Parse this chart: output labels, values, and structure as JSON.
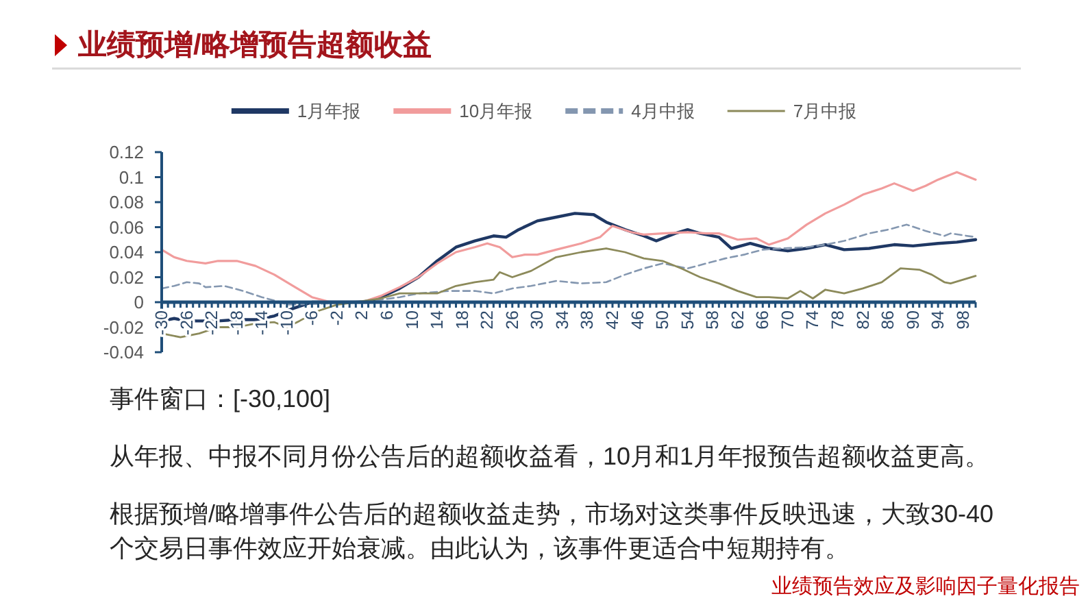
{
  "chart_data": {
    "type": "line",
    "title": "业绩预增/略增预告超额收益",
    "legend": "top",
    "line_style": "solid",
    "xlim": [
      -30,
      100
    ],
    "ylim": [
      -0.04,
      0.12
    ],
    "yticks": [
      -0.04,
      -0.02,
      0,
      0.02,
      0.04,
      0.06,
      0.08,
      0.1,
      0.12
    ],
    "xticks": [
      -30,
      {
        "value": -29,
        "label": null
      },
      {
        "value": -28,
        "label": null
      },
      {
        "value": -27,
        "label": null
      },
      -26,
      {
        "value": -25,
        "label": null
      },
      {
        "value": -24,
        "label": null
      },
      {
        "value": -23,
        "label": null
      },
      -22,
      {
        "value": -21,
        "label": null
      },
      {
        "value": -20,
        "label": null
      },
      {
        "value": -19,
        "label": null
      },
      -18,
      {
        "value": -17,
        "label": null
      },
      {
        "value": -16,
        "label": null
      },
      {
        "value": -15,
        "label": null
      },
      -14,
      {
        "value": -13,
        "label": null
      },
      {
        "value": -12,
        "label": null
      },
      {
        "value": -11,
        "label": null
      },
      -10,
      {
        "value": -9,
        "label": null
      },
      {
        "value": -8,
        "label": null
      },
      {
        "value": -7,
        "label": null
      },
      -6,
      {
        "value": -5,
        "label": null
      },
      {
        "value": -4,
        "label": null
      },
      {
        "value": -3,
        "label": null
      },
      -2,
      {
        "value": -1,
        "label": null
      },
      {
        "value": 0,
        "label": null
      },
      {
        "value": 1,
        "label": null
      },
      2,
      {
        "value": 3,
        "label": null
      },
      {
        "value": 4,
        "label": null
      },
      {
        "value": 5,
        "label": null
      },
      6,
      {
        "value": 7,
        "label": null
      },
      {
        "value": 8,
        "label": null
      },
      {
        "value": 9,
        "label": null
      },
      10,
      {
        "value": 11,
        "label": null
      },
      {
        "value": 12,
        "label": null
      },
      {
        "value": 13,
        "label": null
      },
      14,
      {
        "value": 15,
        "label": null
      },
      {
        "value": 16,
        "label": null
      },
      {
        "value": 17,
        "label": null
      },
      18,
      {
        "value": 19,
        "label": null
      },
      {
        "value": 20,
        "label": null
      },
      {
        "value": 21,
        "label": null
      },
      22,
      {
        "value": 23,
        "label": null
      },
      {
        "value": 24,
        "label": null
      },
      {
        "value": 25,
        "label": null
      },
      26,
      {
        "value": 27,
        "label": null
      },
      {
        "value": 28,
        "label": null
      },
      {
        "value": 29,
        "label": null
      },
      30,
      {
        "value": 31,
        "label": null
      },
      {
        "value": 32,
        "label": null
      },
      {
        "value": 33,
        "label": null
      },
      34,
      {
        "value": 35,
        "label": null
      },
      {
        "value": 36,
        "label": null
      },
      {
        "value": 37,
        "label": null
      },
      38,
      {
        "value": 39,
        "label": null
      },
      {
        "value": 40,
        "label": null
      },
      {
        "value": 41,
        "label": null
      },
      42,
      {
        "value": 43,
        "label": null
      },
      {
        "value": 44,
        "label": null
      },
      {
        "value": 45,
        "label": null
      },
      46,
      {
        "value": 47,
        "label": null
      },
      {
        "value": 48,
        "label": null
      },
      {
        "value": 49,
        "label": null
      },
      50,
      {
        "value": 51,
        "label": null
      },
      {
        "value": 52,
        "label": null
      },
      {
        "value": 53,
        "label": null
      },
      54,
      {
        "value": 55,
        "label": null
      },
      {
        "value": 56,
        "label": null
      },
      {
        "value": 57,
        "label": null
      },
      58,
      {
        "value": 59,
        "label": null
      },
      {
        "value": 60,
        "label": null
      },
      {
        "value": 61,
        "label": null
      },
      62,
      {
        "value": 63,
        "label": null
      },
      {
        "value": 64,
        "label": null
      },
      {
        "value": 65,
        "label": null
      },
      66,
      {
        "value": 67,
        "label": null
      },
      {
        "value": 68,
        "label": null
      },
      {
        "value": 69,
        "label": null
      },
      70,
      {
        "value": 71,
        "label": null
      },
      {
        "value": 72,
        "label": null
      },
      {
        "value": 73,
        "label": null
      },
      74,
      {
        "value": 75,
        "label": null
      },
      {
        "value": 76,
        "label": null
      },
      {
        "value": 77,
        "label": null
      },
      78,
      {
        "value": 79,
        "label": null
      },
      {
        "value": 80,
        "label": null
      },
      {
        "value": 81,
        "label": null
      },
      82,
      {
        "value": 83,
        "label": null
      },
      {
        "value": 84,
        "label": null
      },
      {
        "value": 85,
        "label": null
      },
      86,
      {
        "value": 87,
        "label": null
      },
      {
        "value": 88,
        "label": null
      },
      {
        "value": 89,
        "label": null
      },
      90,
      {
        "value": 91,
        "label": null
      },
      {
        "value": 92,
        "label": null
      },
      {
        "value": 93,
        "label": null
      },
      94,
      {
        "value": 95,
        "label": null
      },
      {
        "value": 96,
        "label": null
      },
      {
        "value": 97,
        "label": null
      },
      98,
      {
        "value": 99,
        "label": null
      },
      {
        "value": 100,
        "label": null
      }
    ],
    "series": [
      {
        "name": "1月年报",
        "color": "#1f3864",
        "x": [
          -30,
          -28,
          -26,
          -21,
          -18,
          -15,
          -12,
          -9,
          -6,
          -3,
          0,
          3,
          5,
          8,
          11,
          14,
          17,
          20,
          23,
          25,
          27,
          30,
          32,
          36,
          39,
          41,
          44,
          47,
          49,
          52,
          54,
          56,
          59,
          61,
          64,
          67,
          70,
          73,
          76,
          79,
          83,
          87,
          90,
          94,
          97,
          100
        ],
        "values": [
          -0.015,
          -0.013,
          -0.015,
          -0.015,
          -0.014,
          -0.014,
          -0.011,
          -0.005,
          0,
          0,
          0,
          0,
          0.004,
          0.011,
          0.02,
          0.033,
          0.044,
          0.049,
          0.053,
          0.052,
          0.058,
          0.065,
          0.067,
          0.071,
          0.07,
          0.064,
          0.058,
          0.053,
          0.049,
          0.055,
          0.058,
          0.055,
          0.052,
          0.043,
          0.047,
          0.043,
          0.041,
          0.043,
          0.046,
          0.042,
          0.043,
          0.046,
          0.045,
          0.047,
          0.048,
          0.05
        ]
      },
      {
        "name": "10月年报",
        "color": "#f19c9c",
        "x": [
          -30,
          -28,
          -26,
          -23,
          -21,
          -18,
          -15,
          -12,
          -9,
          -6,
          -3,
          0,
          2,
          5,
          8,
          11,
          14,
          17,
          20,
          22,
          24,
          26,
          28,
          30,
          33,
          37,
          40,
          42,
          45,
          47,
          50,
          54,
          57,
          59,
          62,
          65,
          67,
          70,
          73,
          76,
          79,
          82,
          85,
          87,
          90,
          92,
          94,
          97,
          100
        ],
        "values": [
          0.042,
          0.036,
          0.033,
          0.031,
          0.033,
          0.033,
          0.029,
          0.022,
          0.013,
          0.004,
          0,
          0,
          0,
          0.005,
          0.012,
          0.02,
          0.031,
          0.04,
          0.044,
          0.047,
          0.044,
          0.036,
          0.038,
          0.038,
          0.042,
          0.047,
          0.052,
          0.061,
          0.056,
          0.054,
          0.055,
          0.056,
          0.055,
          0.055,
          0.05,
          0.051,
          0.046,
          0.051,
          0.062,
          0.071,
          0.078,
          0.086,
          0.091,
          0.095,
          0.089,
          0.093,
          0.098,
          0.104,
          0.098
        ]
      },
      {
        "name": "4月中报",
        "color": "#8497b0",
        "line_style": "dashed",
        "x": [
          -30,
          -28,
          -26,
          -24,
          -23,
          -20,
          -17,
          -14,
          -11,
          -10,
          -3,
          5,
          8,
          11,
          16,
          20,
          23,
          26,
          29,
          33,
          37,
          41,
          44,
          47,
          50,
          54,
          57,
          60,
          63,
          66,
          69,
          73,
          76,
          79,
          83,
          86,
          89,
          92,
          95,
          96,
          100
        ],
        "values": [
          0.011,
          0.013,
          0.016,
          0.015,
          0.012,
          0.013,
          0.009,
          0.004,
          0,
          -0.002,
          -0.001,
          0.002,
          0.004,
          0.007,
          0.009,
          0.009,
          0.007,
          0.011,
          0.013,
          0.017,
          0.015,
          0.016,
          0.022,
          0.027,
          0.031,
          0.027,
          0.031,
          0.035,
          0.038,
          0.042,
          0.043,
          0.044,
          0.046,
          0.049,
          0.055,
          0.058,
          0.062,
          0.057,
          0.053,
          0.055,
          0.052
        ]
      },
      {
        "name": "7月中报",
        "color": "#8c8a5a",
        "x": [
          -30,
          -27,
          -24,
          -21,
          -18,
          -15,
          -12,
          -10,
          -8,
          -5,
          -2,
          1,
          5,
          8,
          11,
          14,
          17,
          20,
          23,
          24,
          26,
          29,
          33,
          37,
          41,
          44,
          47,
          50,
          53,
          56,
          59,
          62,
          65,
          67,
          70,
          72,
          74,
          76,
          79,
          82,
          85,
          88,
          91,
          93,
          95,
          96,
          100
        ],
        "values": [
          -0.025,
          -0.028,
          -0.025,
          -0.02,
          -0.02,
          -0.017,
          -0.016,
          -0.02,
          -0.015,
          -0.007,
          -0.002,
          0,
          0.003,
          0.007,
          0.007,
          0.007,
          0.013,
          0.016,
          0.018,
          0.024,
          0.02,
          0.025,
          0.036,
          0.04,
          0.043,
          0.04,
          0.035,
          0.033,
          0.027,
          0.02,
          0.015,
          0.009,
          0.004,
          0.004,
          0.003,
          0.009,
          0.003,
          0.01,
          0.007,
          0.011,
          0.016,
          0.027,
          0.026,
          0.022,
          0.016,
          0.015,
          0.021
        ]
      }
    ],
    "annotations": [
      "事件窗口：[-30,100]",
      "从年报、中报不同月份公告后的超额收益看，10月和1月年报预告超额收益更高。",
      "根据预增/略增事件公告后的超额收益走势，市场对这类事件反映迅速，大致30-40个交易日事件效应开始衰减。由此认为，该事件更适合中短期持有。",
      "业绩预告效应及影响因子量化报告"
    ]
  }
}
